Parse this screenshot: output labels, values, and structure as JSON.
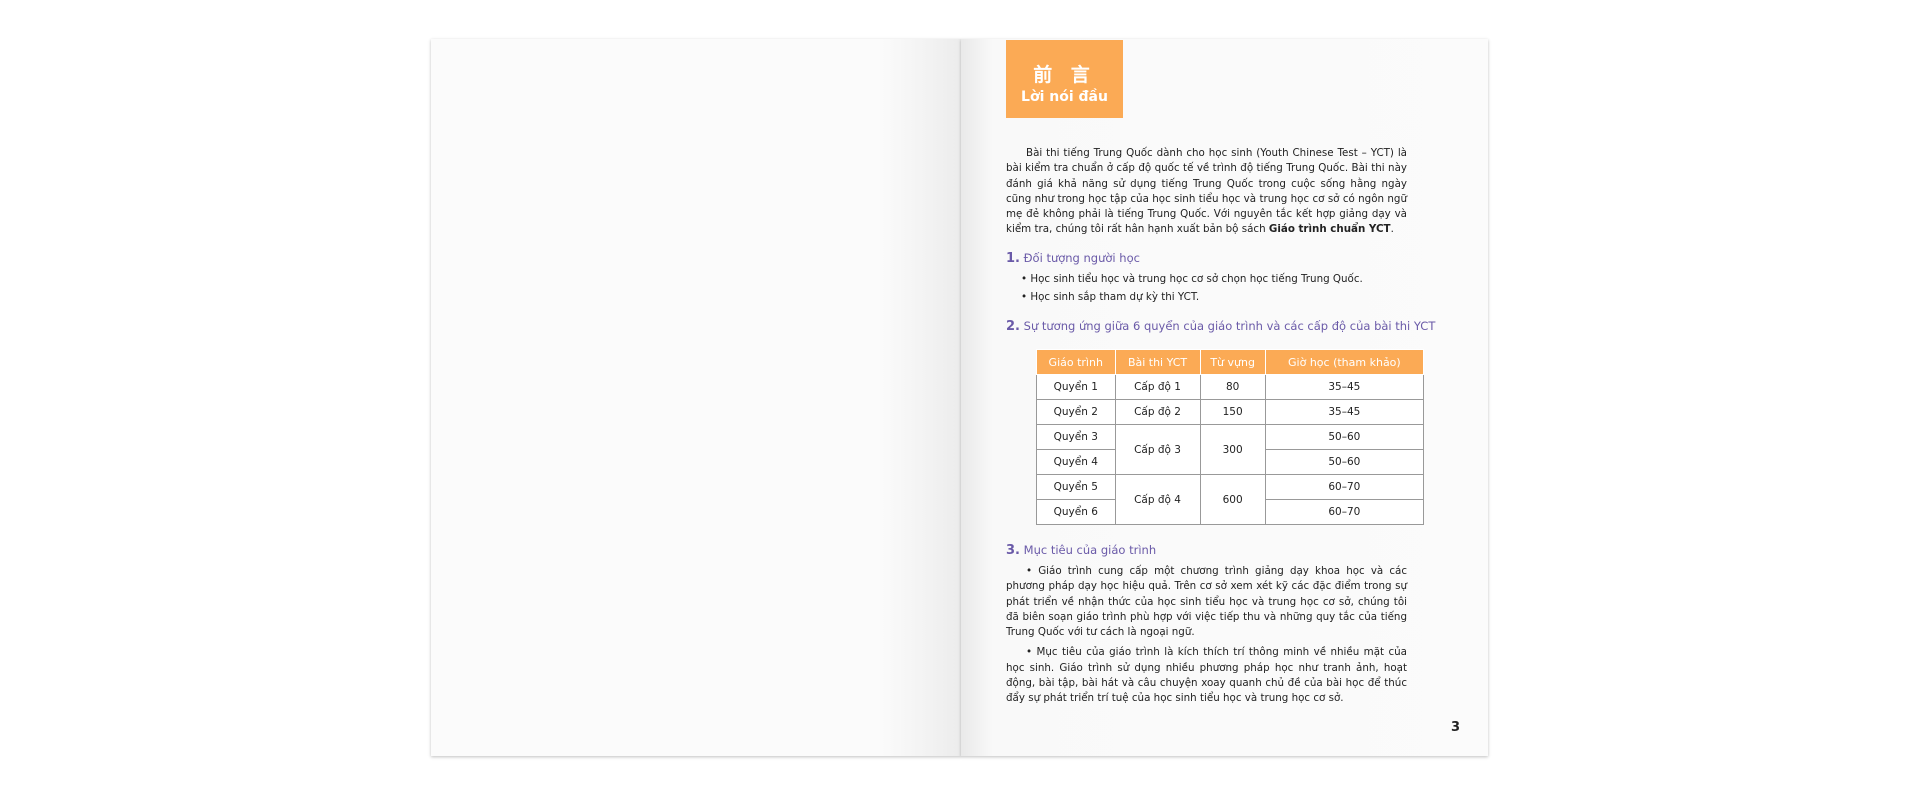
{
  "header": {
    "chinese_title": "前 言",
    "title": "Lời nói đầu"
  },
  "intro": {
    "text": "Bài thi tiếng Trung Quốc dành cho học sinh (Youth Chinese Test – YCT) là bài kiểm tra chuẩn ở cấp độ quốc tế về trình độ tiếng Trung Quốc. Bài thi này đánh giá khả năng sử dụng tiếng Trung Quốc trong cuộc sống hằng ngày cũng như trong học tập của học sinh tiểu học và trung học cơ sở có ngôn ngữ mẹ đẻ không phải là tiếng Trung Quốc. Với nguyên tắc kết hợp giảng dạy và kiểm tra, chúng tôi rất hân hạnh xuất bản bộ sách ",
    "bold": "Giáo trình chuẩn YCT",
    "end": "."
  },
  "section1": {
    "number": "1.",
    "title": "Đối tượng người học",
    "bullets": [
      "Học sinh tiểu học và trung học cơ sở chọn học tiếng Trung Quốc.",
      "Học sinh sắp tham dự kỳ thi YCT."
    ]
  },
  "section2": {
    "number": "2.",
    "title": "Sự tương ứng giữa 6 quyển của giáo trình và các cấp độ của bài thi YCT",
    "table": {
      "headers": [
        "Giáo trình",
        "Bài thi YCT",
        "Từ vựng",
        "Giờ học (tham khảo)"
      ],
      "books": [
        "Quyển 1",
        "Quyển 2",
        "Quyển 3",
        "Quyển 4",
        "Quyển 5",
        "Quyển 6"
      ],
      "levels": [
        "Cấp độ 1",
        "Cấp độ 2",
        "Cấp độ 3",
        "Cấp độ 4"
      ],
      "vocab": [
        "80",
        "150",
        "300",
        "600"
      ],
      "hours": [
        "35–45",
        "35–45",
        "50–60",
        "50–60",
        "60–70",
        "60–70"
      ]
    }
  },
  "section3": {
    "number": "3.",
    "title": "Mục tiêu của giáo trình",
    "paragraphs": [
      "• Giáo trình cung cấp một chương trình giảng dạy khoa học và các phương pháp dạy học hiệu quả. Trên cơ sở xem xét kỹ các đặc điểm trong sự phát triển về nhận thức của học sinh tiểu học và trung học cơ sở, chúng tôi đã biên soạn giáo trình phù hợp với việc tiếp thu và những quy tắc của tiếng Trung Quốc với tư cách là ngoại ngữ.",
      "• Mục tiêu của giáo trình là kích thích trí thông minh về nhiều mặt của học sinh. Giáo trình sử dụng nhiều phương pháp học như tranh ảnh, hoạt động, bài tập, bài hát và câu chuyện xoay quanh chủ đề của bài học để thúc đẩy sự phát triển trí tuệ của học sinh tiểu học và trung học cơ sở."
    ]
  },
  "page_number": "3"
}
